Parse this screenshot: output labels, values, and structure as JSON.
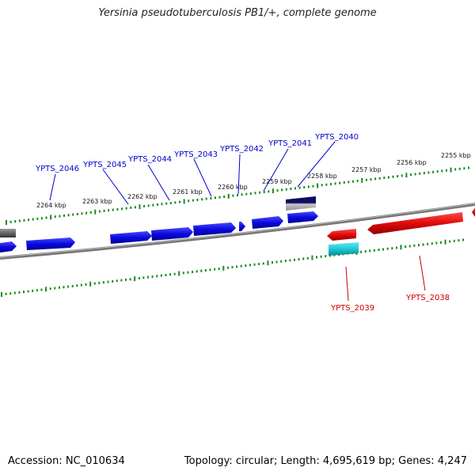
{
  "title": "Yersinia pseudotuberculosis PB1/+, complete genome",
  "footer": {
    "accession": "Accession: NC_010634",
    "summary": "Topology: circular; Length: 4,695,619 bp; Genes: 4,247"
  },
  "colors": {
    "forward_gene": "#0a0ae0",
    "reverse_gene": "#e00a0a",
    "rna_gene": "#1ec8d2",
    "other_dark": "#0c0c60",
    "grey_gene": "#666666",
    "backbone": "#888888",
    "ticks": "#1a8a1a",
    "forward_label": "#0000cc",
    "reverse_label": "#cc0000"
  },
  "kbp_labels": [
    "2264 kbp",
    "2263 kbp",
    "2262 kbp",
    "2261 kbp",
    "2260 kbp",
    "2259 kbp",
    "2258 kbp",
    "2257 kbp",
    "2256 kbp",
    "2255 kbp"
  ],
  "forward_gene_labels": [
    "YPTS_2046",
    "YPTS_2045",
    "YPTS_2044",
    "YPTS_2043",
    "YPTS_2042",
    "YPTS_2041",
    "YPTS_2040"
  ],
  "reverse_gene_labels": [
    "YPTS_2039",
    "YPTS_2038"
  ]
}
